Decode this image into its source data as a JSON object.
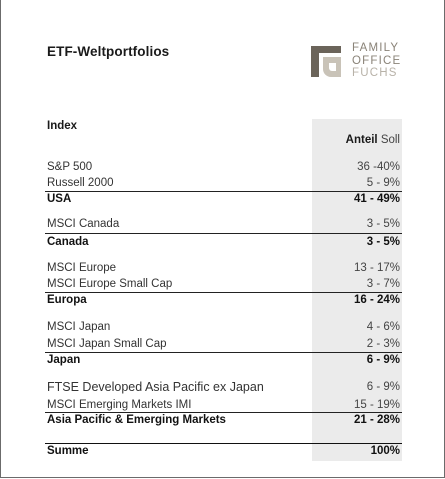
{
  "title": "ETF-Weltportfolios",
  "logo": {
    "line1": "FAMILY",
    "line2": "OFFICE",
    "line3": "FUCHS"
  },
  "table": {
    "header_index": "Index",
    "header_anteil_bold": "Anteil",
    "header_anteil_rest": "Soll",
    "rows": [
      {
        "name": "S&P 500",
        "value": "36 -40%"
      },
      {
        "name": "Russell 2000",
        "value": "5 - 9%"
      },
      {
        "name": "USA",
        "value": "41 - 49%",
        "total": true
      },
      {
        "name": "MSCI Canada",
        "value": "3 - 5%"
      },
      {
        "name": "Canada",
        "value": "3 - 5%",
        "total": true
      },
      {
        "name": "MSCI Europe",
        "value": "13 - 17%"
      },
      {
        "name": "MSCI Europe Small Cap",
        "value": "3 - 7%"
      },
      {
        "name": "Europa",
        "value": "16 - 24%",
        "total": true
      },
      {
        "name": "MSCI Japan",
        "value": "4 - 6%"
      },
      {
        "name": "MSCI Japan Small Cap",
        "value": "2 - 3%"
      },
      {
        "name": "Japan",
        "value": "6 - 9%",
        "total": true
      },
      {
        "name": "FTSE Developed Asia Pacific ex Japan",
        "value": "6 - 9%"
      },
      {
        "name": "MSCI Emerging Markets IMI",
        "value": "15 - 19%"
      },
      {
        "name": "Asia Pacific & Emerging Markets",
        "value": "21 - 28%",
        "total": true
      },
      {
        "name": "Summe",
        "value": "100%",
        "total": true
      }
    ]
  }
}
